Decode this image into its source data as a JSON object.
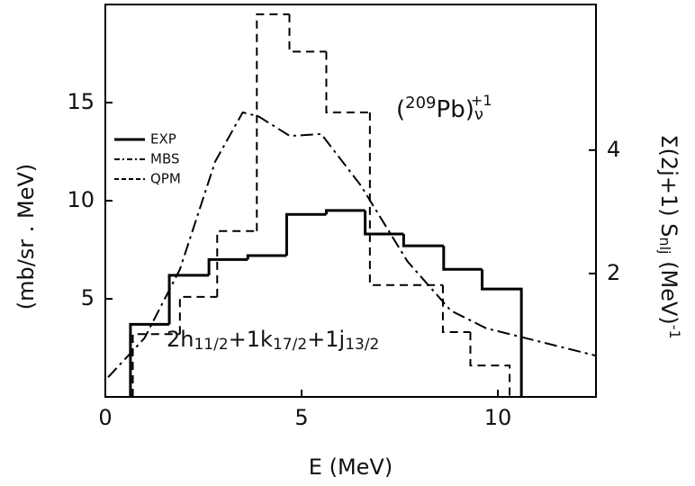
{
  "chart_data": {
    "type": "histogram",
    "xlabel": "E (MeV)",
    "ylabel": "(mb/sr . MeV)",
    "y2label": [
      "Σ(2j+1) S",
      "nlj",
      " (MeV)",
      "-1"
    ],
    "annotations": {
      "nucleus": [
        "(",
        "209",
        "Pb)",
        "ν",
        "+1"
      ],
      "configuration": [
        "2h",
        "11/2",
        "+1k",
        "17/2",
        "+1j",
        "13/2"
      ]
    },
    "xlim": [
      0,
      12.5
    ],
    "xticks": [
      0,
      5,
      10
    ],
    "ylim": [
      0,
      20
    ],
    "yticks": [
      5,
      10,
      15
    ],
    "y2lim": [
      0,
      6.36
    ],
    "y2ticks": [
      2,
      4
    ],
    "legend": "upper left",
    "series": [
      {
        "name": "EXP",
        "color": "#000000",
        "style": "solid",
        "bins": [
          0.64,
          1.63,
          2.64,
          3.63,
          4.62,
          5.63,
          6.62,
          7.6,
          8.62,
          9.6,
          10.6
        ],
        "values": [
          3.7,
          6.2,
          7.0,
          7.2,
          9.3,
          9.5,
          8.3,
          7.7,
          6.5,
          5.5
        ]
      },
      {
        "name": "MBS",
        "color": "#000000",
        "style": "dashdot",
        "kind": "line",
        "x": [
          0.07,
          1.0,
          1.9,
          2.8,
          3.5,
          3.9,
          4.7,
          5.5,
          6.5,
          7.7,
          8.8,
          9.7,
          11.1,
          12.5
        ],
        "values": [
          1.0,
          3.0,
          6.5,
          12.0,
          14.5,
          14.3,
          13.3,
          13.4,
          10.8,
          6.9,
          4.4,
          3.5,
          2.8,
          2.1
        ]
      },
      {
        "name": "QPM",
        "color": "#000000",
        "style": "dashed",
        "bins": [
          0.7,
          1.9,
          2.85,
          3.86,
          4.69,
          5.63,
          6.74,
          8.6,
          9.3,
          10.3
        ],
        "values": [
          3.2,
          5.1,
          8.45,
          19.5,
          17.6,
          14.5,
          5.7,
          3.3,
          1.6
        ]
      }
    ]
  }
}
